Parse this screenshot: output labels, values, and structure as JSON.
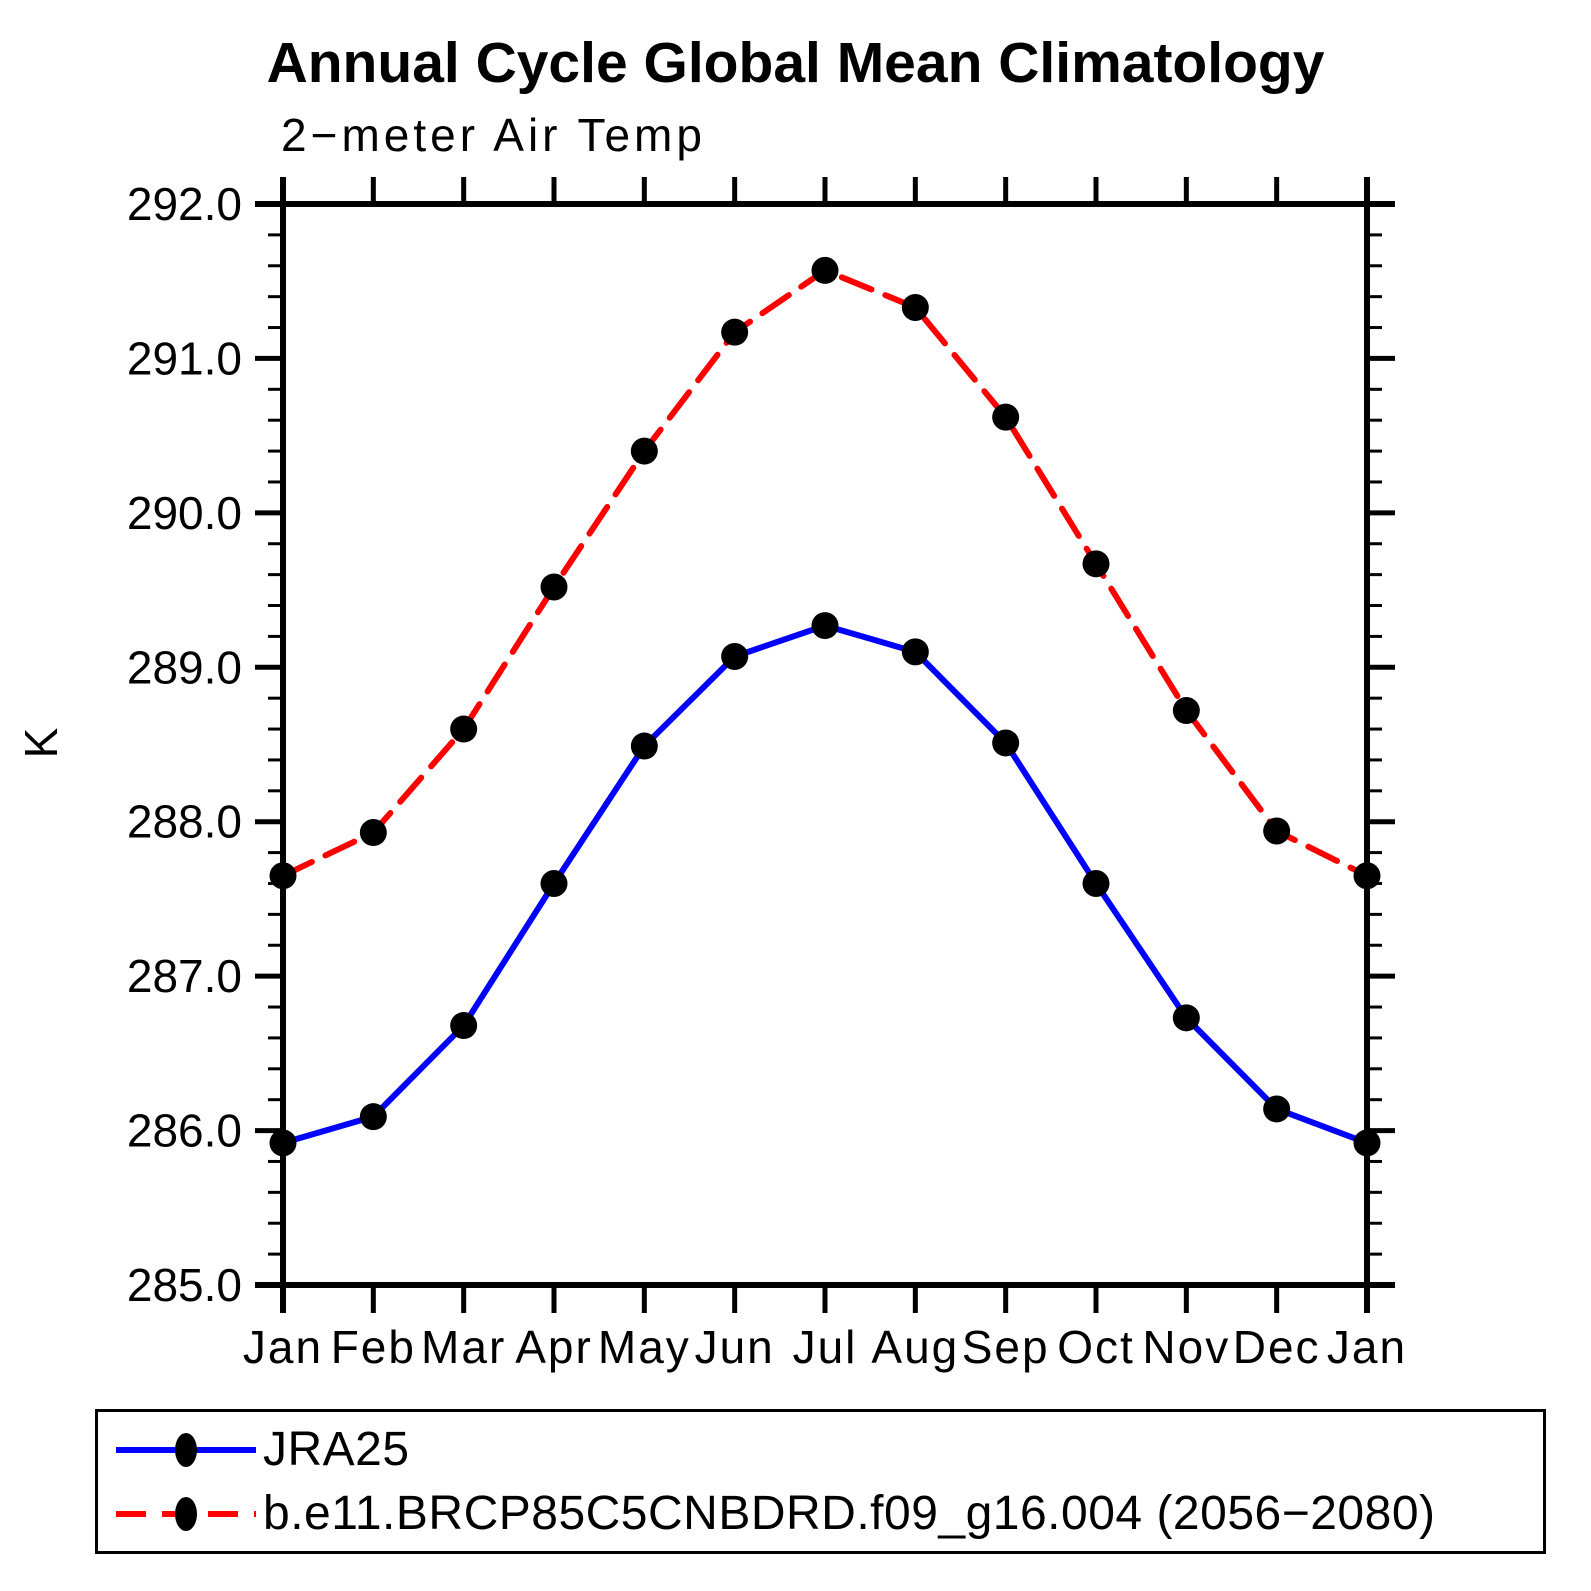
{
  "title": "Annual Cycle Global Mean Climatology",
  "subtitle": "2−meter Air Temp",
  "ylabel": "K",
  "chart_data": {
    "type": "line",
    "x_categories": [
      "Jan",
      "Feb",
      "Mar",
      "Apr",
      "May",
      "Jun",
      "Jul",
      "Aug",
      "Sep",
      "Oct",
      "Nov",
      "Dec",
      "Jan"
    ],
    "ylim": [
      285.0,
      292.0
    ],
    "ytick_major_step": 1.0,
    "yminor_per_major": 4,
    "ytick_labels": [
      "285.0",
      "286.0",
      "287.0",
      "288.0",
      "289.0",
      "290.0",
      "291.0",
      "292.0"
    ],
    "grid": "off",
    "legend_position": "bottom-left",
    "marker_color": "#000000",
    "series": [
      {
        "name": "JRA25",
        "color": "#0000ff",
        "style": "solid",
        "values": [
          285.92,
          286.09,
          286.68,
          287.6,
          288.49,
          289.07,
          289.27,
          289.1,
          288.51,
          287.6,
          286.73,
          286.14,
          285.92
        ]
      },
      {
        "name": "b.e11.BRCP85C5CNBDRD.f09_g16.004 (2056−2080)",
        "color": "#ff0000",
        "style": "dashed",
        "values": [
          287.65,
          287.93,
          288.6,
          289.52,
          290.4,
          291.17,
          291.57,
          291.33,
          290.62,
          289.67,
          288.72,
          287.94,
          287.65
        ]
      }
    ]
  }
}
